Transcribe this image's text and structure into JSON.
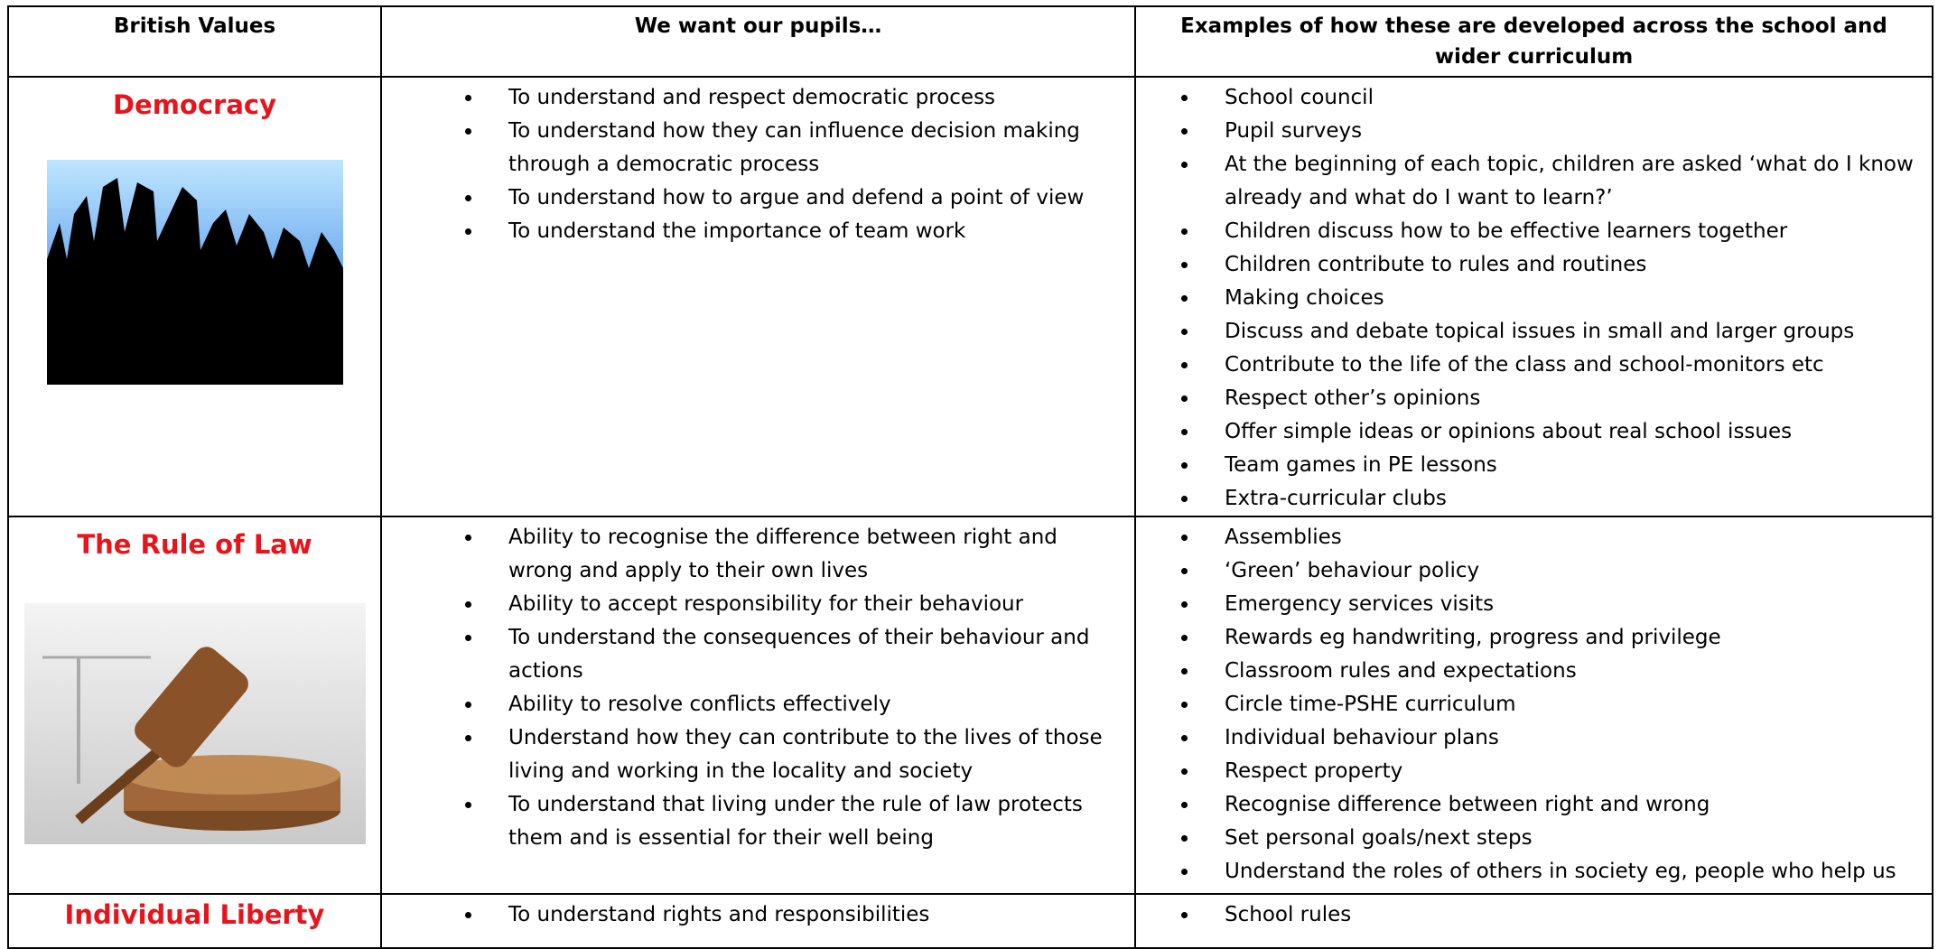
{
  "header": {
    "columns": [
      "British Values",
      "We want our pupils…",
      "Examples of how these are developed across the school and wider curriculum"
    ]
  },
  "rows": [
    {
      "value": "Democracy",
      "pupils": [
        "To understand and respect democratic process",
        "To understand how they can influence decision making through a democratic process",
        "To understand how to argue and defend a point of view",
        "To understand the importance of team work"
      ],
      "examples": [
        "School council",
        "Pupil surveys",
        "At the beginning of each topic, children are asked ‘what do I know already and what do I want to learn?’",
        "Children discuss how to be effective learners together",
        "Children contribute to rules and routines",
        "Making choices",
        "Discuss and debate topical issues in small and larger groups",
        "Contribute to the life of the class and school-monitors etc",
        "Respect other’s opinions",
        "Offer simple ideas or opinions about real school issues",
        "Team games in PE lessons",
        "Extra-curricular clubs"
      ]
    },
    {
      "value": "The Rule of Law",
      "pupils": [
        "Ability to recognise the difference between right and wrong and apply to their own lives",
        "Ability to accept responsibility for their behaviour",
        "To understand the consequences of their behaviour and actions",
        "Ability to resolve conflicts effectively",
        "Understand how they can contribute to the lives of those living and working in the locality and society",
        "To understand that living under the rule of law protects them and is essential for their well being"
      ],
      "examples": [
        "Assemblies",
        "‘Green’ behaviour policy",
        "Emergency services visits",
        "Rewards eg handwriting, progress and privilege",
        "Classroom rules and expectations",
        "Circle time-PSHE curriculum",
        "Individual behaviour plans",
        "Respect property",
        "Recognise difference between right and wrong",
        "Set personal goals/next steps",
        "Understand the roles of others in society eg, people who help us"
      ]
    },
    {
      "value": "Individual Liberty",
      "pupils": [
        "To understand rights and responsibilities"
      ],
      "examples": [
        "School rules"
      ]
    }
  ]
}
